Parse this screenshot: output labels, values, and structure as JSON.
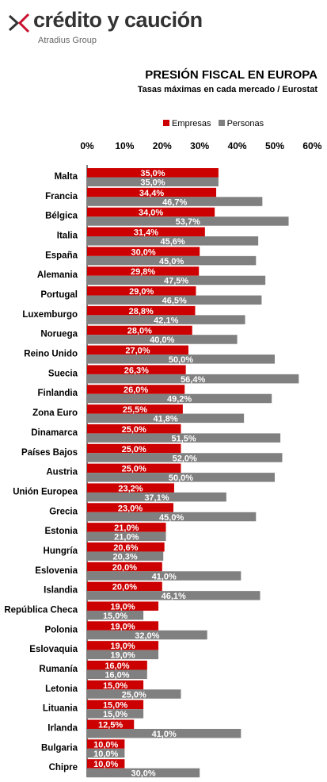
{
  "brand": {
    "name": "crédito y caución",
    "sub": "Atradius Group",
    "mark_color": "#c8102e"
  },
  "chart_data": {
    "type": "bar",
    "orientation": "horizontal",
    "title": "PRESIÓN FISCAL EN EUROPA",
    "subtitle": "Tasas máximas  en cada  mercado / Eurostat",
    "xlim": [
      0,
      60
    ],
    "ticks": [
      "0%",
      "10%",
      "20%",
      "30%",
      "40%",
      "50%",
      "60%"
    ],
    "legend_position": "top",
    "categories": [
      "Malta",
      "Francia",
      "Bélgica",
      "Italia",
      "España",
      "Alemania",
      "Portugal",
      "Luxemburgo",
      "Noruega",
      "Reino Unido",
      "Suecia",
      "Finlandia",
      "Zona Euro",
      "Dinamarca",
      "Países Bajos",
      "Austria",
      "Unión Europea",
      "Grecia",
      "Estonia",
      "Hungría",
      "Eslovenia",
      "Islandia",
      "República Checa",
      "Polonia",
      "Eslovaquia",
      "Rumanía",
      "Letonia",
      "Lituania",
      "Irlanda",
      "Bulgaria",
      "Chipre"
    ],
    "series": [
      {
        "name": "Empresas",
        "color": "#cc0000",
        "values": [
          35.0,
          34.4,
          34.0,
          31.4,
          30.0,
          29.8,
          29.0,
          28.8,
          28.0,
          27.0,
          26.3,
          26.0,
          25.5,
          25.0,
          25.0,
          25.0,
          23.2,
          23.0,
          21.0,
          20.6,
          20.0,
          20.0,
          19.0,
          19.0,
          19.0,
          16.0,
          15.0,
          15.0,
          12.5,
          10.0,
          10.0
        ],
        "labels": [
          "35,0%",
          "34,4%",
          "34,0%",
          "31,4%",
          "30,0%",
          "29,8%",
          "29,0%",
          "28,8%",
          "28,0%",
          "27,0%",
          "26,3%",
          "26,0%",
          "25,5%",
          "25,0%",
          "25,0%",
          "25,0%",
          "23,2%",
          "23,0%",
          "21,0%",
          "20,6%",
          "20,0%",
          "20,0%",
          "19,0%",
          "19,0%",
          "19,0%",
          "16,0%",
          "15,0%",
          "15,0%",
          "12,5%",
          "10,0%",
          "10,0%"
        ]
      },
      {
        "name": "Personas",
        "color": "#808080",
        "values": [
          35.0,
          46.7,
          53.7,
          45.6,
          45.0,
          47.5,
          46.5,
          42.1,
          40.0,
          50.0,
          56.4,
          49.2,
          41.8,
          51.5,
          52.0,
          50.0,
          37.1,
          45.0,
          21.0,
          20.3,
          41.0,
          46.1,
          15.0,
          32.0,
          19.0,
          16.0,
          25.0,
          15.0,
          41.0,
          10.0,
          30.0
        ],
        "labels": [
          "35,0%",
          "46,7%",
          "53,7%",
          "45,6%",
          "45,0%",
          "47,5%",
          "46,5%",
          "42,1%",
          "40,0%",
          "50,0%",
          "56,4%",
          "49,2%",
          "41,8%",
          "51,5%",
          "52,0%",
          "50,0%",
          "37,1%",
          "45,0%",
          "21,0%",
          "20,3%",
          "41,0%",
          "46,1%",
          "15,0%",
          "32,0%",
          "19,0%",
          "16,0%",
          "25,0%",
          "15,0%",
          "41,0%",
          "10,0%",
          "30,0%"
        ]
      }
    ]
  }
}
